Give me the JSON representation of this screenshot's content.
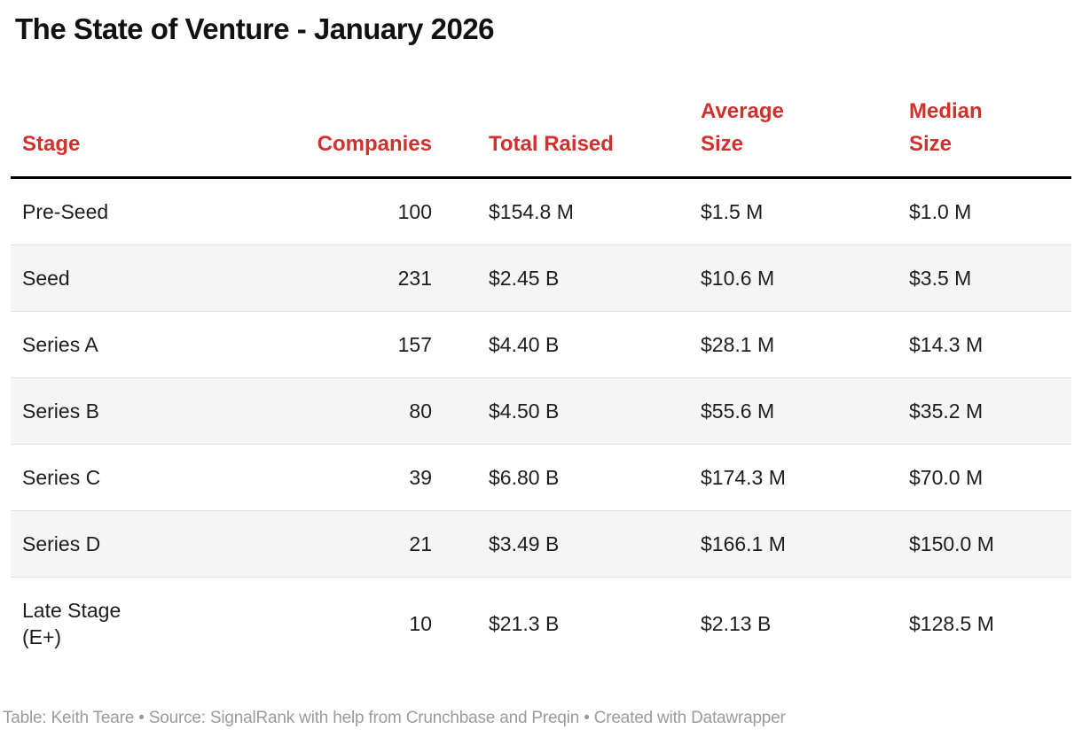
{
  "title": "The State of Venture - January 2026",
  "footer": "Table: Keith Teare • Source: SignalRank with help from Crunchbase and Preqin • Created with Datawrapper",
  "colors": {
    "header_text": "#d0312d",
    "header_border": "#000000",
    "row_stripe": "#f5f5f5",
    "row_border": "#e0e0e0",
    "body_text": "#1d1d1d",
    "footer_text": "#9b9b9b",
    "background": "#ffffff"
  },
  "chart_data": {
    "type": "table",
    "title": "The State of Venture - January 2026",
    "columns": [
      "Stage",
      "Companies",
      "Total Raised",
      "Average Size",
      "Median Size"
    ],
    "header_display_labels": [
      "Stage",
      "Companies",
      "Total Raised",
      "Average\nSize",
      "Median\nSize"
    ],
    "rows": [
      {
        "cells": [
          "Pre-Seed",
          "100",
          "$154.8 M",
          "$1.5 M",
          "$1.0 M"
        ]
      },
      {
        "cells": [
          "Seed",
          "231",
          "$2.45 B",
          "$10.6 M",
          "$3.5 M"
        ]
      },
      {
        "cells": [
          "Series A",
          "157",
          "$4.40 B",
          "$28.1 M",
          "$14.3 M"
        ]
      },
      {
        "cells": [
          "Series B",
          "80",
          "$4.50 B",
          "$55.6 M",
          "$35.2 M"
        ]
      },
      {
        "cells": [
          "Series C",
          "39",
          "$6.80 B",
          "$174.3 M",
          "$70.0 M"
        ]
      },
      {
        "cells": [
          "Series D",
          "21",
          "$3.49 B",
          "$166.1 M",
          "$150.0 M"
        ]
      },
      {
        "cells": [
          "Late Stage\n(E+)",
          "10",
          "$21.3 B",
          "$2.13 B",
          "$128.5 M"
        ]
      }
    ],
    "row_display_labels": [
      "Pre-Seed",
      "Seed",
      "Series A",
      "Series B",
      "Series C",
      "Series D",
      "Late Stage (E+)"
    ],
    "numeric": {
      "companies": [
        100,
        231,
        157,
        80,
        39,
        21,
        10
      ],
      "total_raised_usd_millions": [
        154.8,
        2450,
        4400,
        4500,
        6800,
        3490,
        21300
      ],
      "average_size_usd_millions": [
        1.5,
        10.6,
        28.1,
        55.6,
        174.3,
        166.1,
        2130
      ],
      "median_size_usd_millions": [
        1.0,
        3.5,
        14.3,
        35.2,
        70.0,
        150.0,
        128.5
      ]
    },
    "layout": {
      "header_text_color": "#d0312d",
      "striped_rows": true,
      "column_alignments": [
        "left",
        "right",
        "left",
        "left",
        "left"
      ]
    }
  }
}
